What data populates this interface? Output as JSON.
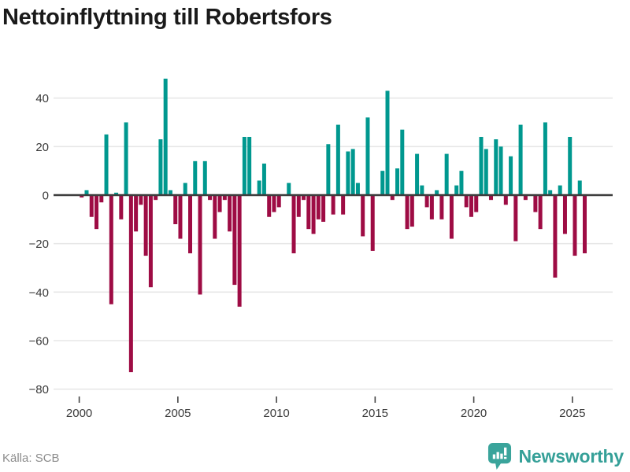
{
  "title": "Nettoinflyttning till Robertsfors",
  "footer": {
    "source": "Källa: SCB",
    "brand": "Newsworthy"
  },
  "colors": {
    "positive_bar": "#00988F",
    "negative_bar": "#9E0C44",
    "gridline": "#E7E7E7",
    "zero_line": "#3D3D3D",
    "axis_text": "#3A3A3A",
    "tick_mark": "#444444",
    "title_text": "#1A1A1A",
    "source_text": "#8C8C8C",
    "logo_mark": "#3AA49B",
    "logo_text": "#35A098"
  },
  "chart_data": {
    "type": "bar",
    "title": "Nettoinflyttning till Robertsfors",
    "xlabel": "",
    "ylabel": "",
    "grid": true,
    "legend": "none",
    "frequency": "quarterly",
    "start_year": 2000,
    "start_quarter": 1,
    "x_tick_labels": [
      "2000",
      "2005",
      "2010",
      "2015",
      "2020",
      "2025"
    ],
    "y_tick_values": [
      40,
      20,
      0,
      -20,
      -40,
      -60,
      -80
    ],
    "ylim": [
      -80,
      48
    ],
    "series": [
      {
        "name": "Nettoinflyttning",
        "values": [
          -1,
          2,
          -9,
          -14,
          -3,
          25,
          -45,
          1,
          -10,
          30,
          -73,
          -15,
          -4,
          -25,
          -38,
          -2,
          23,
          48,
          2,
          -12,
          -18,
          5,
          -24,
          14,
          -41,
          14,
          -2,
          -18,
          -7,
          -2,
          -15,
          -37,
          -46,
          24,
          24,
          0,
          6,
          13,
          -9,
          -7,
          -5,
          0,
          5,
          -24,
          -9,
          -2,
          -14,
          -16,
          -10,
          -11,
          21,
          -8,
          29,
          -8,
          18,
          19,
          5,
          -17,
          32,
          -23,
          0,
          10,
          43,
          -2,
          11,
          27,
          -14,
          -13,
          17,
          4,
          -5,
          -10,
          2,
          -10,
          17,
          -18,
          4,
          10,
          -5,
          -9,
          -7,
          24,
          19,
          -2,
          23,
          20,
          -4,
          16,
          -19,
          29,
          -2,
          0,
          -7,
          -14,
          30,
          2,
          -34,
          4,
          -16,
          24,
          -25,
          6,
          -24
        ]
      }
    ]
  }
}
